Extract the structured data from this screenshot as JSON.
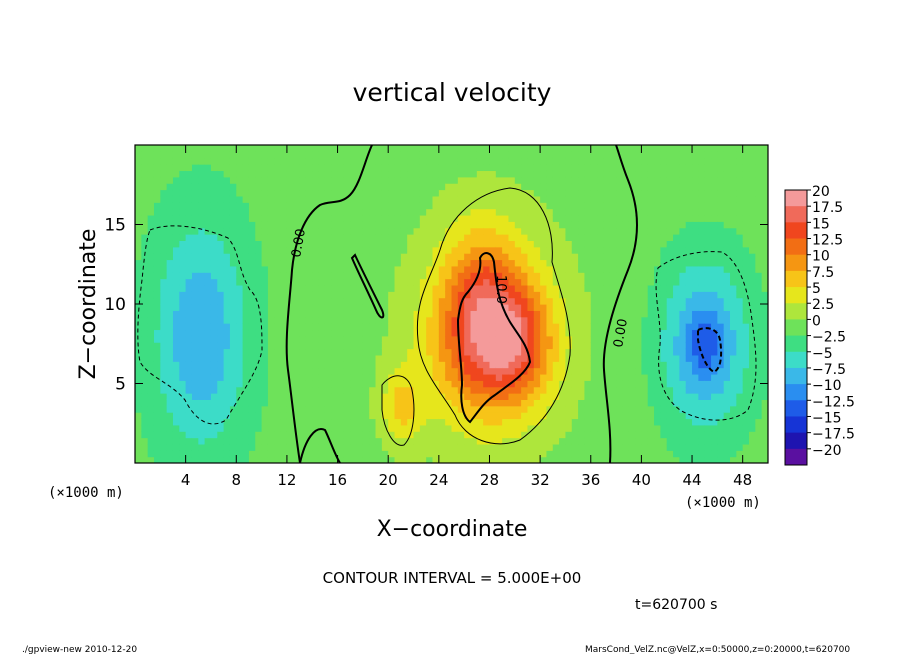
{
  "title": "vertical velocity",
  "xlabel": "X−coordinate",
  "ylabel": "Z−coordinate",
  "x_unit_left": "(×1000 m)",
  "x_unit_right": "(×1000 m)",
  "contour_interval": "CONTOUR INTERVAL = 5.000E+00",
  "time_label": "t=620700 s",
  "footer_left": "./gpview-new   2010-12-20",
  "footer_right": "MarsCond_VelZ.nc@VelZ,x=0:50000,z=0:20000,t=620700",
  "contour_labels": [
    "0.00",
    "10.0",
    "0.00"
  ],
  "chart_data": {
    "type": "heatmap",
    "title": "vertical velocity",
    "xlabel": "X−coordinate",
    "ylabel": "Z−coordinate",
    "xlim": [
      0,
      50
    ],
    "ylim": [
      0,
      20
    ],
    "xticks": [
      4,
      8,
      12,
      16,
      20,
      24,
      28,
      32,
      36,
      40,
      44,
      48
    ],
    "yticks": [
      5,
      10,
      15
    ],
    "colorbar": {
      "levels": [
        20,
        17.5,
        15,
        12.5,
        10,
        7.5,
        5,
        2.5,
        0,
        -2.5,
        -5,
        -7.5,
        -10,
        -12.5,
        -15,
        -17.5,
        -20
      ],
      "tick_labels": [
        "20",
        "17.5",
        "15",
        "12.5",
        "10",
        "7.5",
        "5",
        "2.5",
        "0",
        "−2.5",
        "−5",
        "−7.5",
        "−10",
        "−12.5",
        "−15",
        "−17.5",
        "−20"
      ],
      "colors": [
        "#f49a9a",
        "#f06a5a",
        "#f0461e",
        "#f26e14",
        "#f59612",
        "#f7c418",
        "#e6e61c",
        "#aee63c",
        "#6ee25a",
        "#3ede82",
        "#3cdcc8",
        "#3ab8e8",
        "#2a8ef0",
        "#1e5ce8",
        "#1634d6",
        "#1e14b0",
        "#5a10a0"
      ]
    },
    "fields": [
      {
        "cx": 28,
        "cz": 7.5,
        "sx": 3.0,
        "sz": 3.2,
        "amp": 12.5
      },
      {
        "cx": 27.5,
        "cz": 11.0,
        "sx": 2.2,
        "sz": 3.0,
        "amp": 7
      },
      {
        "cx": 30.5,
        "cz": 7.5,
        "sx": 1.8,
        "sz": 2.2,
        "amp": 6
      },
      {
        "cx": 28,
        "cz": 8.5,
        "sx": 5.5,
        "sz": 6.5,
        "amp": 4
      },
      {
        "cx": 21,
        "cz": 3.5,
        "sx": 1.2,
        "sz": 1.8,
        "amp": 6
      },
      {
        "cx": 5.2,
        "cz": 8.0,
        "sx": 2.6,
        "sz": 5.0,
        "amp": -8
      },
      {
        "cx": 45.0,
        "cz": 7.5,
        "sx": 2.4,
        "sz": 3.6,
        "amp": -9
      },
      {
        "cx": 45.0,
        "cz": 7.5,
        "sx": 0.9,
        "sz": 1.4,
        "amp": -4
      }
    ],
    "base_value": 0.8
  }
}
